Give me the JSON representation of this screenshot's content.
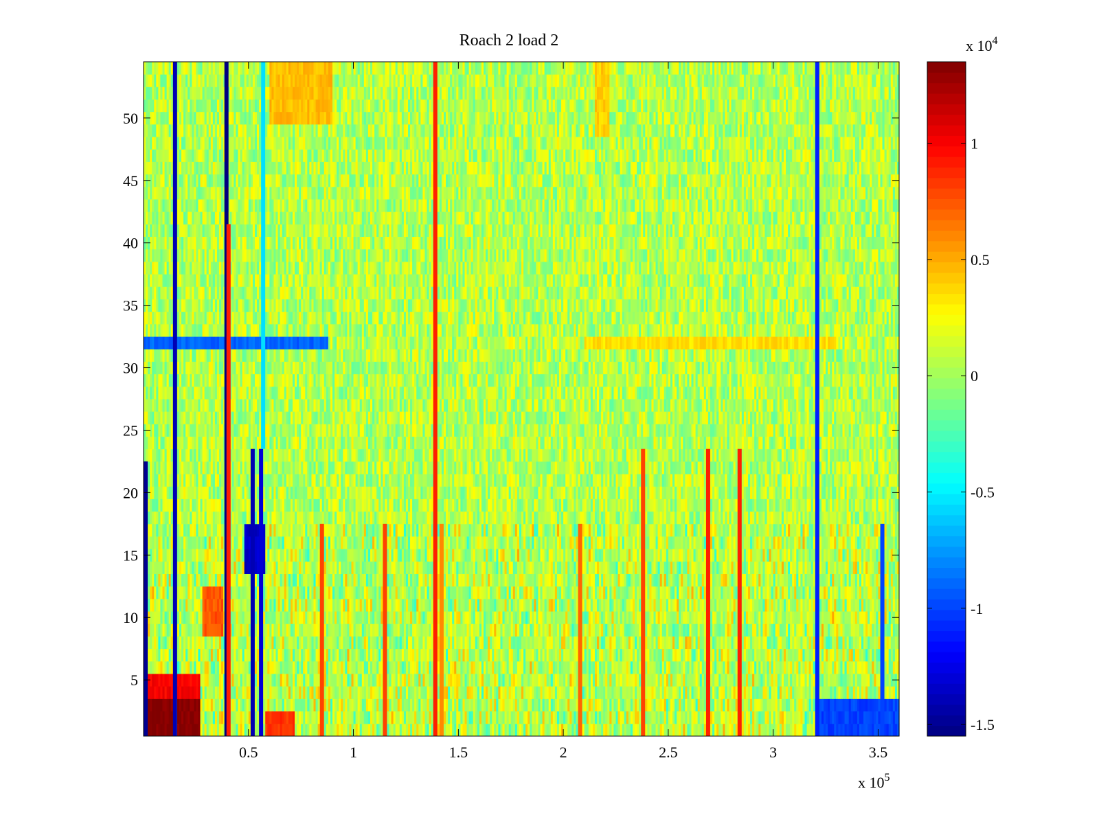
{
  "chart_data": {
    "type": "heatmap",
    "title": "Roach 2 load 2",
    "xlabel": "",
    "ylabel": "",
    "xlim": [
      0,
      360000
    ],
    "ylim": [
      0.5,
      54.5
    ],
    "x_ticks": [
      50000,
      100000,
      150000,
      200000,
      250000,
      300000,
      350000
    ],
    "x_tick_labels": [
      "0.5",
      "1",
      "1.5",
      "2",
      "2.5",
      "3",
      "3.5"
    ],
    "x_exponent_label": "x 10",
    "x_exponent_power": "5",
    "y_ticks": [
      5,
      10,
      15,
      20,
      25,
      30,
      35,
      40,
      45,
      50
    ],
    "y_tick_labels": [
      "5",
      "10",
      "15",
      "20",
      "25",
      "30",
      "35",
      "40",
      "45",
      "50"
    ],
    "colorbar": {
      "colormap": "jet",
      "clim": [
        -15500,
        13500
      ],
      "ticks": [
        -15000,
        -10000,
        -5000,
        0,
        5000,
        10000
      ],
      "tick_labels": [
        "-1.5",
        "-1",
        "-0.5",
        "0",
        "0.5",
        "1"
      ],
      "exponent_label": "x 10",
      "exponent_power": "4"
    },
    "grid": false,
    "background_value": 500,
    "column_features": [
      {
        "x": 1000,
        "value": -15000,
        "rows": [
          1,
          22
        ]
      },
      {
        "x": 15000,
        "value": -14000,
        "rows": [
          1,
          54
        ]
      },
      {
        "x": 39500,
        "value": -15500,
        "rows": [
          1,
          54
        ]
      },
      {
        "x": 40500,
        "value": 9000,
        "rows": [
          1,
          41
        ]
      },
      {
        "x": 52000,
        "value": -14000,
        "rows": [
          1,
          23
        ]
      },
      {
        "x": 56000,
        "value": -13000,
        "rows": [
          1,
          23
        ]
      },
      {
        "x": 57000,
        "value": -5500,
        "rows": [
          24,
          54
        ]
      },
      {
        "x": 85000,
        "value": 8000,
        "rows": [
          1,
          17
        ]
      },
      {
        "x": 115000,
        "value": 8000,
        "rows": [
          1,
          17
        ]
      },
      {
        "x": 139000,
        "value": 9000,
        "rows": [
          1,
          54
        ]
      },
      {
        "x": 142000,
        "value": 6000,
        "rows": [
          1,
          17
        ]
      },
      {
        "x": 208000,
        "value": 7000,
        "rows": [
          1,
          17
        ]
      },
      {
        "x": 238000,
        "value": 8000,
        "rows": [
          1,
          23
        ]
      },
      {
        "x": 269000,
        "value": 9000,
        "rows": [
          1,
          23
        ]
      },
      {
        "x": 284000,
        "value": 9000,
        "rows": [
          1,
          23
        ]
      },
      {
        "x": 321000,
        "value": -11000,
        "rows": [
          1,
          54
        ]
      },
      {
        "x": 352000,
        "value": -10000,
        "rows": [
          1,
          17
        ]
      }
    ],
    "block_features": [
      {
        "x": [
          0,
          15000
        ],
        "rows": [
          1,
          3
        ],
        "value": 13500
      },
      {
        "x": [
          16000,
          27000
        ],
        "rows": [
          1,
          3
        ],
        "value": 13500
      },
      {
        "x": [
          0,
          27000
        ],
        "rows": [
          4,
          5
        ],
        "value": 10000
      },
      {
        "x": [
          28000,
          38000
        ],
        "rows": [
          9,
          12
        ],
        "value": 7500
      },
      {
        "x": [
          48000,
          58000
        ],
        "rows": [
          14,
          17
        ],
        "value": -13500
      },
      {
        "x": [
          0,
          88000
        ],
        "rows": [
          32,
          32
        ],
        "value": -9000
      },
      {
        "x": [
          210000,
          330000
        ],
        "rows": [
          32,
          32
        ],
        "value": 3500
      },
      {
        "x": [
          58000,
          72000
        ],
        "rows": [
          1,
          2
        ],
        "value": 8500
      },
      {
        "x": [
          320000,
          360000
        ],
        "rows": [
          1,
          3
        ],
        "value": -10000
      },
      {
        "x": [
          60000,
          90000
        ],
        "rows": [
          50,
          54
        ],
        "value": 4500
      },
      {
        "x": [
          215000,
          222000
        ],
        "rows": [
          49,
          54
        ],
        "value": 4000
      }
    ]
  }
}
